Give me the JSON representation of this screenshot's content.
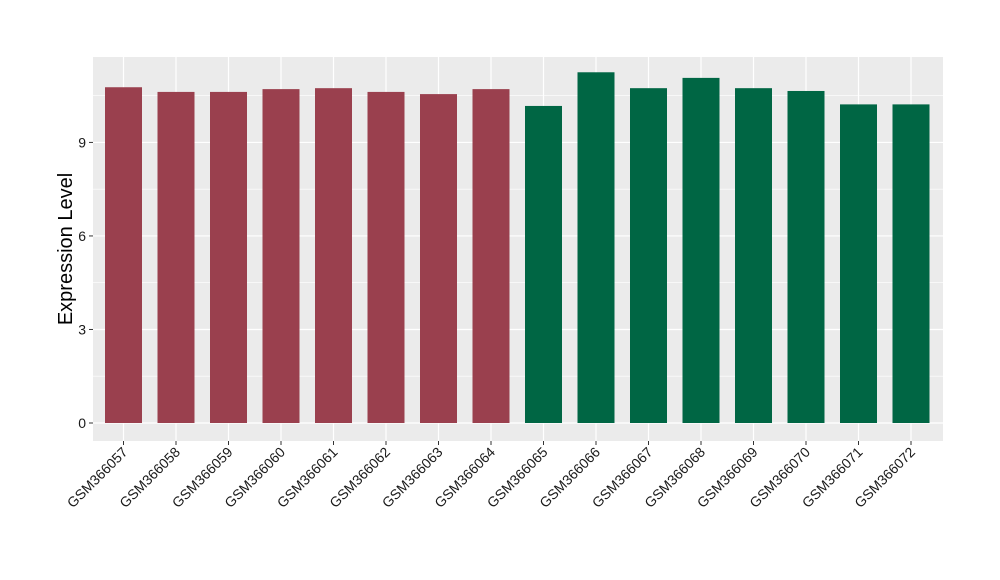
{
  "chart_data": {
    "type": "bar",
    "title": "",
    "xlabel": "",
    "ylabel": "Expression Level",
    "ylim": [
      0,
      11.74
    ],
    "yticks": [
      0,
      3,
      6,
      9
    ],
    "grid": true,
    "panel_background": "#ebebeb",
    "gridline_color": "#ffffff",
    "categories": [
      "GSM366057",
      "GSM366058",
      "GSM366059",
      "GSM366060",
      "GSM366061",
      "GSM366062",
      "GSM366063",
      "GSM366064",
      "GSM366065",
      "GSM366066",
      "GSM366067",
      "GSM366068",
      "GSM366069",
      "GSM366070",
      "GSM366071",
      "GSM366072"
    ],
    "values": [
      10.77,
      10.62,
      10.62,
      10.71,
      10.74,
      10.62,
      10.55,
      10.71,
      10.17,
      11.25,
      10.74,
      11.07,
      10.74,
      10.65,
      10.22,
      10.22
    ],
    "bar_colors": [
      "#9a404e",
      "#9a404e",
      "#9a404e",
      "#9a404e",
      "#9a404e",
      "#9a404e",
      "#9a404e",
      "#9a404e",
      "#006644",
      "#006644",
      "#006644",
      "#006644",
      "#006644",
      "#006644",
      "#006644",
      "#006644"
    ]
  }
}
